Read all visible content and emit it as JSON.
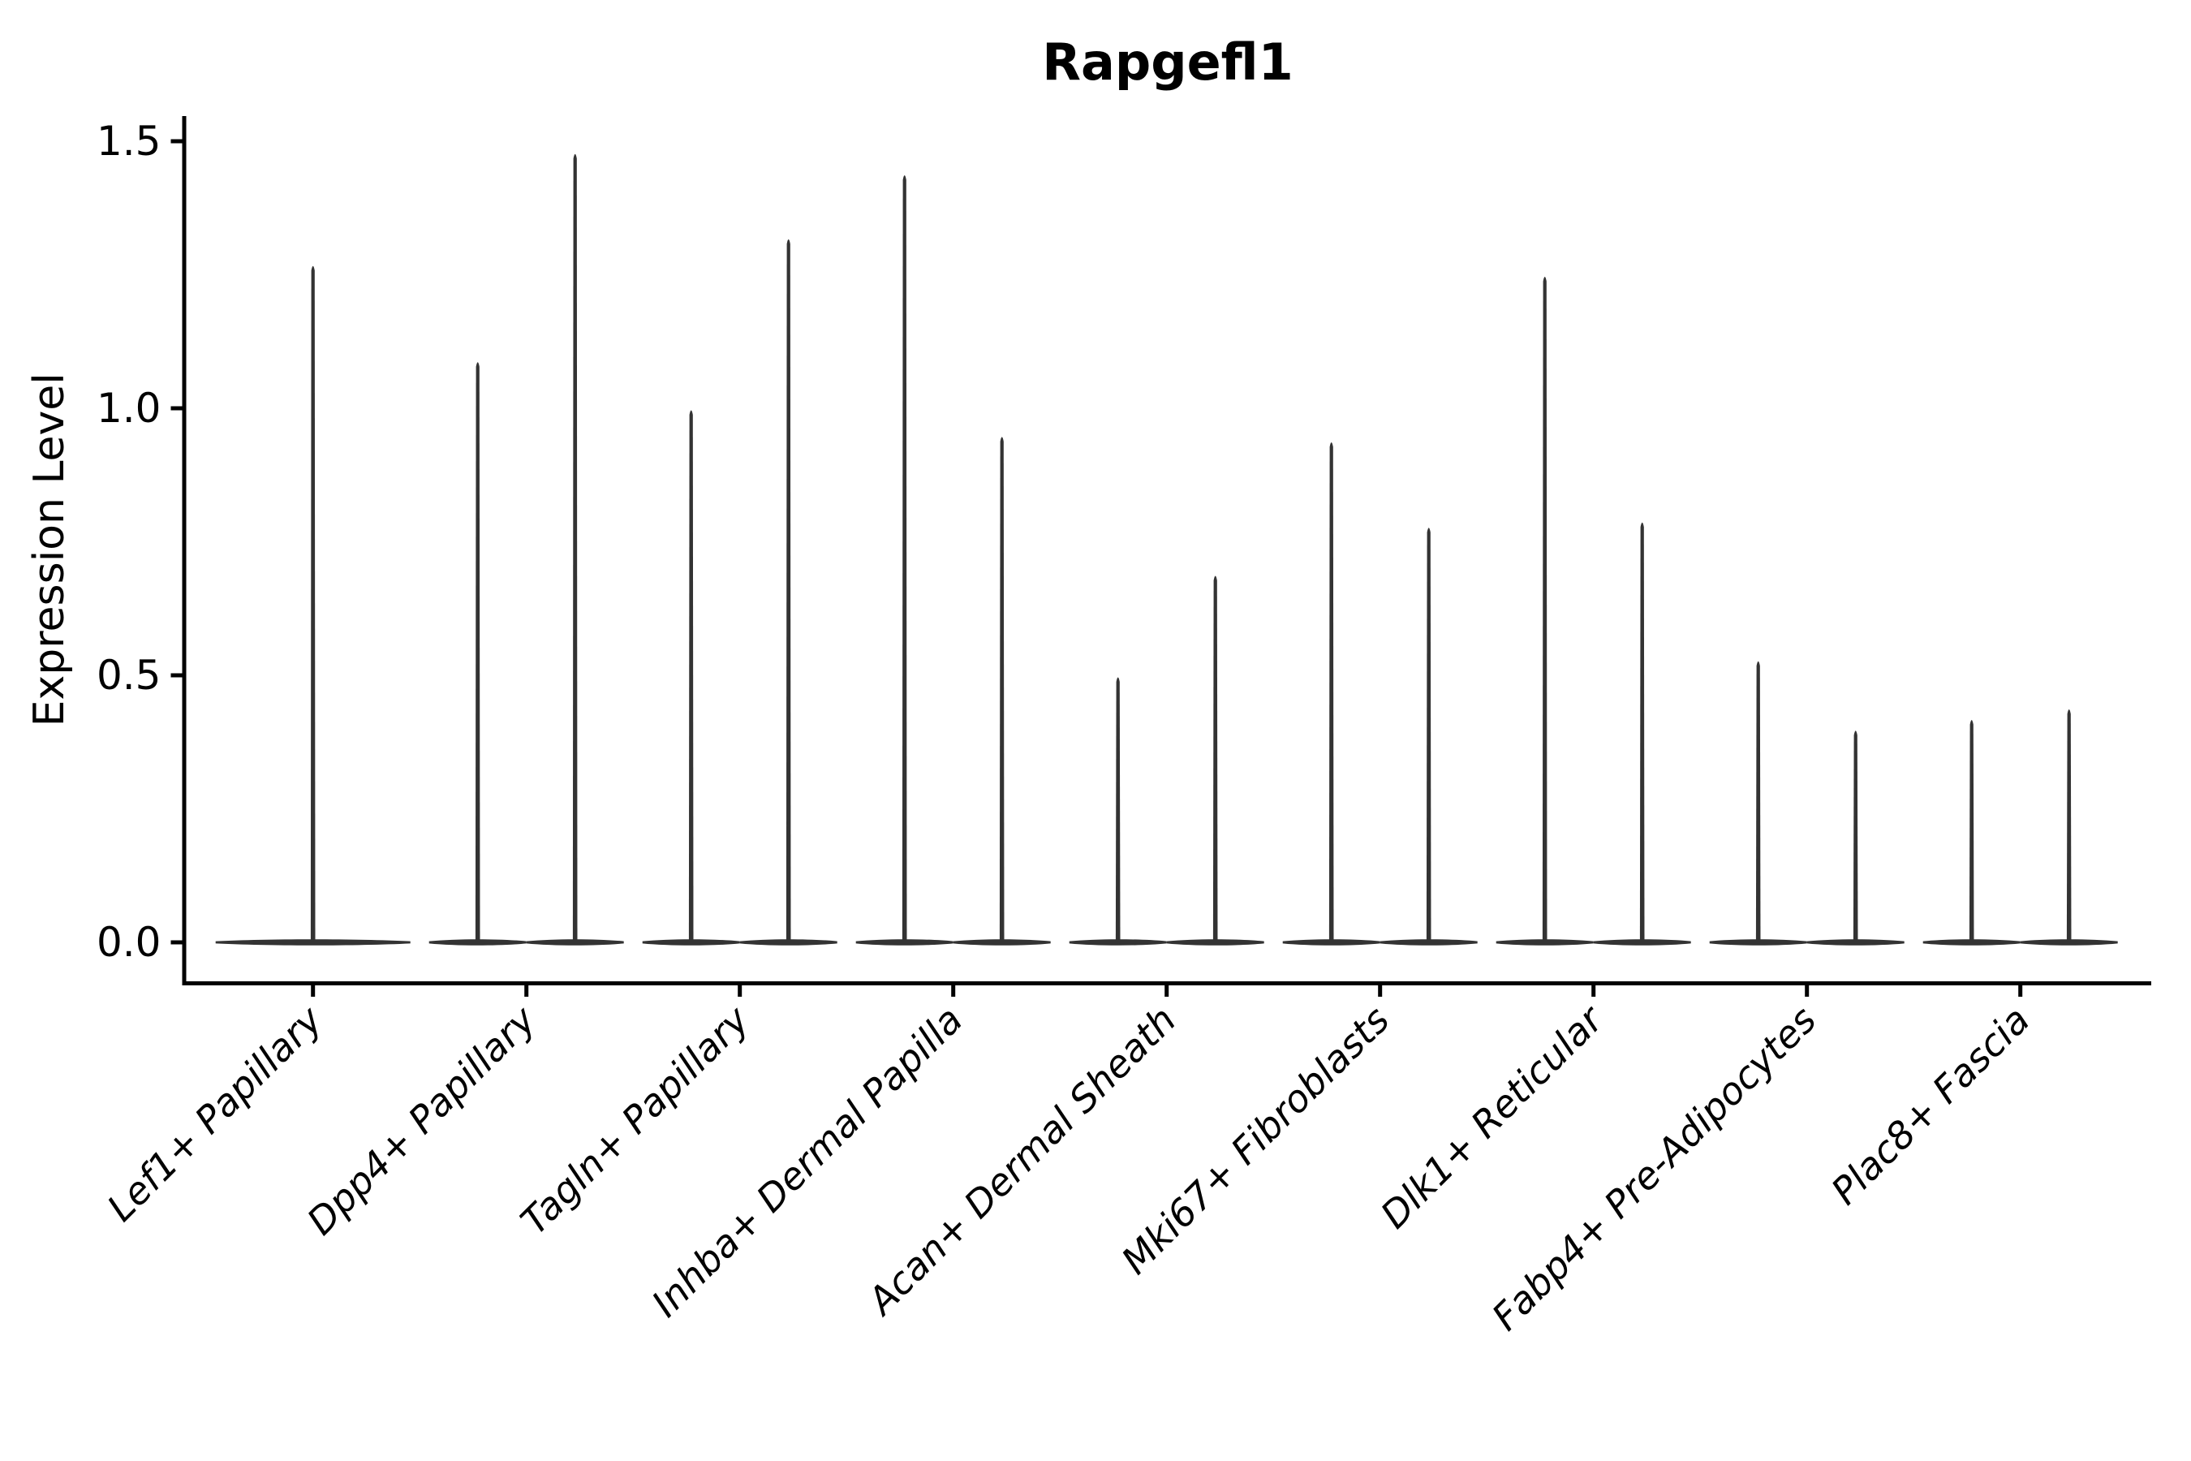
{
  "chart_data": {
    "type": "violin",
    "title": "Rapgefl1",
    "xlabel": "",
    "ylabel": "Expression Level",
    "grid": false,
    "legend": false,
    "yticks": [
      0.0,
      0.5,
      1.0,
      1.5
    ],
    "ytick_labels": [
      "0.0",
      "0.5",
      "1.0",
      "1.5"
    ],
    "ylim": [
      -0.07,
      1.55
    ],
    "baseline_value": 0.0,
    "categories": [
      "Lef1+ Papillary",
      "Dpp4+ Papillary",
      "Tagln+ Papillary",
      "Inhba+ Dermal Papilla",
      "Acan+ Dermal Sheath",
      "Mki67+ Fibroblasts",
      "Dlk1+ Reticular",
      "Fabp4+ Pre-Adipocytes",
      "Plac8+ Fascia"
    ],
    "violins": [
      {
        "category": "Lef1+ Papillary",
        "max_values": [
          1.27
        ]
      },
      {
        "category": "Dpp4+ Papillary",
        "max_values": [
          1.09,
          1.48
        ]
      },
      {
        "category": "Tagln+ Papillary",
        "max_values": [
          1.0,
          1.32
        ]
      },
      {
        "category": "Inhba+ Dermal Papilla",
        "max_values": [
          1.44,
          0.95
        ]
      },
      {
        "category": "Acan+ Dermal Sheath",
        "max_values": [
          0.5,
          0.69
        ]
      },
      {
        "category": "Mki67+ Fibroblasts",
        "max_values": [
          0.94,
          0.78
        ]
      },
      {
        "category": "Dlk1+ Reticular",
        "max_values": [
          1.25,
          0.79
        ]
      },
      {
        "category": "Fabp4+ Pre-Adipocytes",
        "max_values": [
          0.53,
          0.4
        ]
      },
      {
        "category": "Plac8+ Fascia",
        "max_values": [
          0.42,
          0.44
        ]
      }
    ],
    "colors": {
      "violin": "#333333",
      "axis": "#000000",
      "text": "#000000",
      "background": "#ffffff"
    }
  }
}
